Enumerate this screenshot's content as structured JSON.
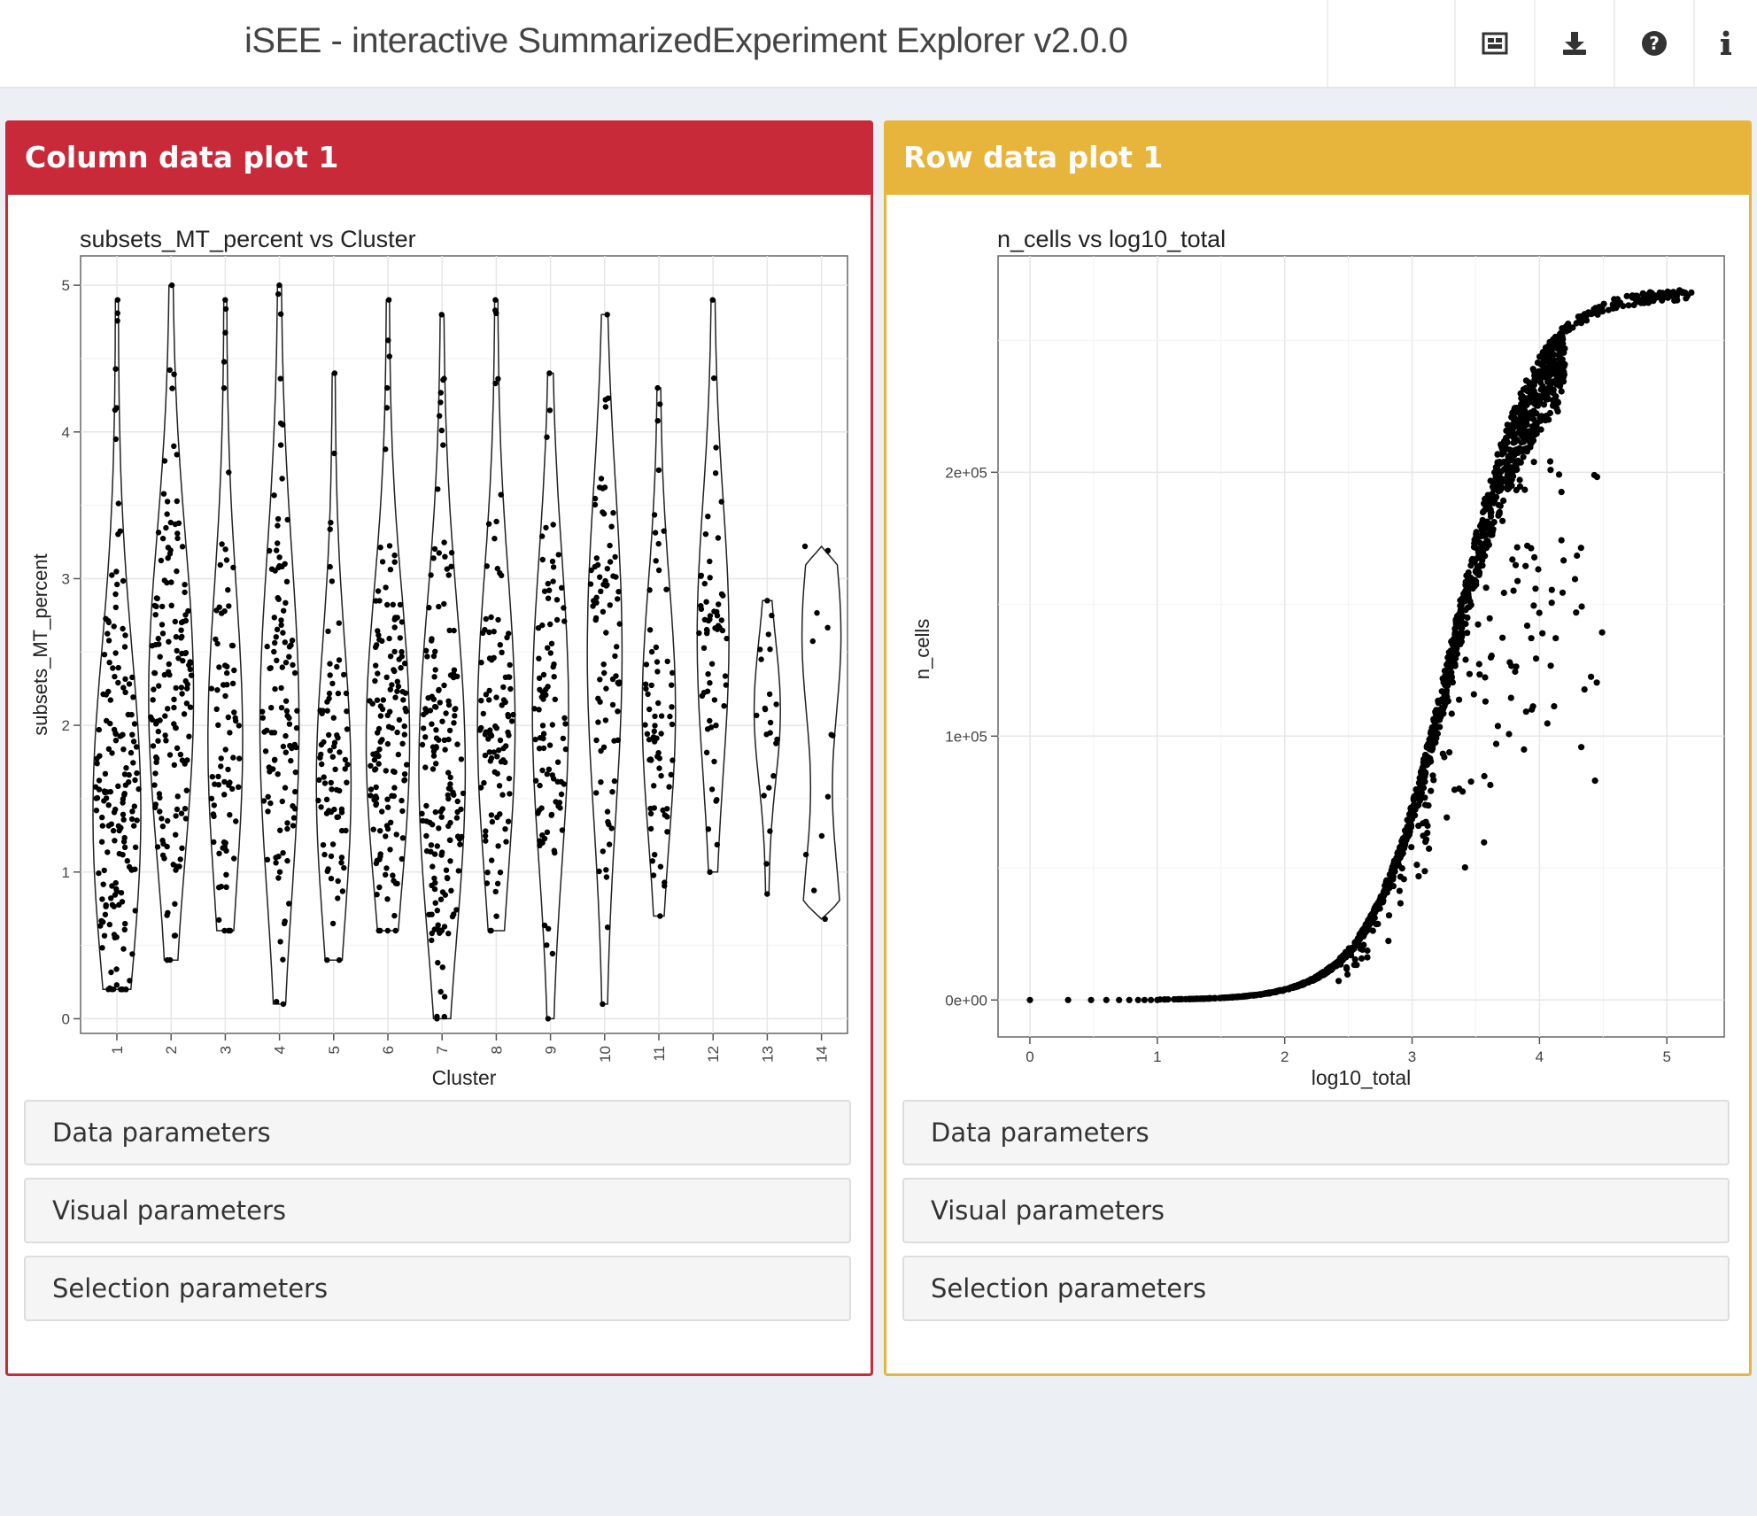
{
  "header": {
    "title": "iSEE - interactive SummarizedExperiment Explorer v2.0.0",
    "buttons": [
      {
        "icon": "panel-organization-icon"
      },
      {
        "icon": "download-icon"
      },
      {
        "icon": "question-circle-icon"
      },
      {
        "icon": "info-icon"
      }
    ]
  },
  "panels": {
    "column": {
      "header": "Column data plot 1",
      "color": "#c92a3a",
      "plot_title": "subsets_MT_percent vs Cluster",
      "params": [
        "Data parameters",
        "Visual parameters",
        "Selection parameters"
      ]
    },
    "row": {
      "header": "Row data plot 1",
      "color": "#e8b53c",
      "plot_title": "n_cells vs log10_total",
      "params": [
        "Data parameters",
        "Visual parameters",
        "Selection parameters"
      ]
    }
  },
  "chart_data": [
    {
      "type": "violin",
      "title": "subsets_MT_percent vs Cluster",
      "xlabel": "Cluster",
      "ylabel": "subsets_MT_percent",
      "categories": [
        "1",
        "2",
        "3",
        "4",
        "5",
        "6",
        "7",
        "8",
        "9",
        "10",
        "11",
        "12",
        "13",
        "14"
      ],
      "yticks": [
        "0",
        "1",
        "2",
        "3",
        "4",
        "5"
      ],
      "ylim": [
        -0.1,
        5.2
      ],
      "x_tick_rotation": 90,
      "violins": [
        {
          "cluster": "1",
          "min": 0.2,
          "max": 4.9,
          "mode": 1.4,
          "n": 170
        },
        {
          "cluster": "2",
          "min": 0.4,
          "max": 5.0,
          "mode": 2.2,
          "n": 150
        },
        {
          "cluster": "3",
          "min": 0.6,
          "max": 4.9,
          "mode": 1.9,
          "n": 80
        },
        {
          "cluster": "4",
          "min": 0.1,
          "max": 5.0,
          "mode": 2.0,
          "n": 110
        },
        {
          "cluster": "5",
          "min": 0.4,
          "max": 4.4,
          "mode": 1.6,
          "n": 80
        },
        {
          "cluster": "6",
          "min": 0.6,
          "max": 4.9,
          "mode": 1.9,
          "n": 140
        },
        {
          "cluster": "7",
          "min": 0.0,
          "max": 4.8,
          "mode": 1.7,
          "n": 160
        },
        {
          "cluster": "8",
          "min": 0.6,
          "max": 4.9,
          "mode": 2.0,
          "n": 100
        },
        {
          "cluster": "9",
          "min": 0.0,
          "max": 4.4,
          "mode": 2.1,
          "n": 90
        },
        {
          "cluster": "10",
          "min": 0.1,
          "max": 4.8,
          "mode": 2.5,
          "n": 80
        },
        {
          "cluster": "11",
          "min": 0.7,
          "max": 4.3,
          "mode": 2.1,
          "n": 70
        },
        {
          "cluster": "12",
          "min": 1.0,
          "max": 4.9,
          "mode": 2.6,
          "n": 60
        },
        {
          "cluster": "13",
          "min": 0.85,
          "max": 2.85,
          "mode": 2.1,
          "n": 22
        },
        {
          "cluster": "14",
          "min": 0.68,
          "max": 3.22,
          "mode": 2.2,
          "n": 12
        }
      ]
    },
    {
      "type": "scatter",
      "title": "n_cells vs log10_total",
      "xlabel": "log10_total",
      "ylabel": "n_cells",
      "xlim": [
        -0.25,
        5.45
      ],
      "ylim": [
        -14000,
        282000
      ],
      "xticks": [
        "0",
        "1",
        "2",
        "3",
        "4",
        "5"
      ],
      "yticks": [
        "0e+00",
        "1e+05",
        "2e+05"
      ],
      "trend": {
        "shape": "sigmoid",
        "center_log10_total": 3.3,
        "plateau_n_cells": 270000
      }
    }
  ]
}
